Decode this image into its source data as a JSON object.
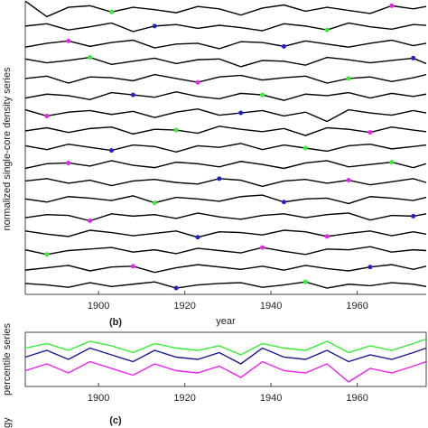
{
  "chart_data": [
    {
      "type": "line",
      "y_label": "normalized single-core density series",
      "x_label": "year",
      "x": [
        1883,
        1888,
        1893,
        1898,
        1903,
        1908,
        1913,
        1918,
        1923,
        1928,
        1933,
        1938,
        1943,
        1948,
        1953,
        1958,
        1963,
        1968,
        1973,
        1976
      ],
      "xlim": [
        1883,
        1976
      ],
      "xticks": [
        1900,
        1920,
        1940,
        1960
      ],
      "series": [
        {
          "color": "#000000",
          "values": [
            1.2,
            -0.8,
            0.4,
            0.6,
            -0.2,
            0.4,
            0.1,
            -0.3,
            0.5,
            0.2,
            -0.6,
            0.3,
            0.7,
            -0.1,
            0.4,
            0.0,
            -0.4,
            0.6,
            0.2,
            0.5
          ],
          "dots": [
            {
              "x": 1903,
              "color": "#33ee33"
            },
            {
              "x": 1968,
              "color": "#ee22ee"
            }
          ]
        },
        {
          "color": "#000000",
          "values": [
            0.2,
            0.5,
            -0.3,
            0.1,
            0.6,
            -0.5,
            0.2,
            0.4,
            -0.1,
            0.3,
            0.0,
            -0.4,
            0.5,
            0.2,
            -0.3,
            0.6,
            0.1,
            -0.2,
            0.4,
            0.3
          ],
          "dots": [
            {
              "x": 1913,
              "color": "#2222cc"
            },
            {
              "x": 1953,
              "color": "#33ee33"
            }
          ]
        },
        {
          "color": "#000000",
          "values": [
            -0.3,
            0.2,
            0.5,
            -0.2,
            0.3,
            0.6,
            -0.4,
            0.1,
            0.2,
            -0.5,
            0.4,
            0.3,
            -0.2,
            0.5,
            0.1,
            -0.3,
            0.2,
            0.6,
            -0.1,
            0.2
          ],
          "dots": [
            {
              "x": 1893,
              "color": "#ee22ee"
            },
            {
              "x": 1943,
              "color": "#2222cc"
            }
          ]
        },
        {
          "color": "#000000",
          "values": [
            0.4,
            -0.1,
            0.2,
            0.6,
            -0.3,
            0.1,
            0.5,
            -0.2,
            0.3,
            0.4,
            -0.6,
            0.2,
            0.1,
            -0.4,
            0.6,
            0.3,
            -0.1,
            0.2,
            0.5,
            -0.2
          ],
          "dots": [
            {
              "x": 1898,
              "color": "#33ee33"
            },
            {
              "x": 1973,
              "color": "#2222cc"
            }
          ]
        },
        {
          "color": "#000000",
          "values": [
            0.1,
            0.4,
            -0.5,
            0.3,
            0.2,
            -0.2,
            0.6,
            0.1,
            -0.4,
            0.3,
            0.5,
            -0.1,
            0.2,
            0.4,
            -0.5,
            0.1,
            0.3,
            -0.3,
            0.2,
            0.6
          ],
          "dots": [
            {
              "x": 1923,
              "color": "#ee22ee"
            },
            {
              "x": 1958,
              "color": "#33ee33"
            }
          ]
        },
        {
          "color": "#000000",
          "values": [
            -0.2,
            0.3,
            0.1,
            -0.4,
            0.5,
            0.2,
            -0.1,
            0.6,
            0.0,
            -0.3,
            0.4,
            0.2,
            -0.5,
            0.3,
            0.1,
            0.5,
            -0.2,
            0.4,
            0.0,
            0.3
          ],
          "dots": [
            {
              "x": 1908,
              "color": "#2222cc"
            },
            {
              "x": 1938,
              "color": "#33ee33"
            }
          ]
        },
        {
          "color": "#000000",
          "values": [
            0.5,
            -0.3,
            0.2,
            0.4,
            -0.1,
            0.3,
            -0.5,
            0.2,
            0.6,
            -0.2,
            0.1,
            0.4,
            -0.3,
            0.2,
            -1.0,
            0.5,
            0.1,
            -0.2,
            0.4,
            0.1
          ],
          "dots": [
            {
              "x": 1888,
              "color": "#ee22ee"
            },
            {
              "x": 1933,
              "color": "#2222cc"
            }
          ]
        },
        {
          "color": "#000000",
          "values": [
            0.0,
            0.4,
            -0.2,
            0.3,
            0.5,
            -0.4,
            0.2,
            0.1,
            -0.3,
            0.6,
            0.2,
            -0.1,
            0.3,
            -0.6,
            0.4,
            0.2,
            -0.2,
            0.5,
            0.1,
            -0.1
          ],
          "dots": [
            {
              "x": 1918,
              "color": "#33ee33"
            },
            {
              "x": 1963,
              "color": "#ee22ee"
            }
          ]
        },
        {
          "color": "#000000",
          "values": [
            0.3,
            -0.2,
            0.5,
            0.1,
            -0.3,
            0.4,
            0.2,
            -0.5,
            0.3,
            0.1,
            0.6,
            -0.2,
            0.4,
            0.0,
            -0.4,
            0.3,
            0.5,
            -0.1,
            0.2,
            0.4
          ],
          "dots": [
            {
              "x": 1903,
              "color": "#2222cc"
            },
            {
              "x": 1948,
              "color": "#33ee33"
            }
          ]
        },
        {
          "color": "#000000",
          "values": [
            -0.4,
            0.2,
            0.3,
            -0.1,
            0.6,
            0.0,
            -0.3,
            0.4,
            0.2,
            -0.2,
            0.5,
            0.1,
            -0.4,
            0.3,
            0.6,
            -0.2,
            0.1,
            0.4,
            -0.3,
            0.2
          ],
          "dots": [
            {
              "x": 1893,
              "color": "#ee22ee"
            },
            {
              "x": 1968,
              "color": "#33ee33"
            }
          ]
        },
        {
          "color": "#000000",
          "values": [
            0.2,
            0.5,
            -0.1,
            0.3,
            -0.4,
            0.2,
            0.4,
            0.0,
            -0.2,
            0.5,
            0.3,
            -0.5,
            0.2,
            0.4,
            -0.1,
            0.3,
            -0.3,
            0.1,
            0.5,
            0.0
          ],
          "dots": [
            {
              "x": 1928,
              "color": "#2222cc"
            },
            {
              "x": 1958,
              "color": "#ee22ee"
            }
          ]
        },
        {
          "color": "#000000",
          "values": [
            0.1,
            -0.3,
            0.4,
            0.2,
            -0.1,
            0.5,
            -0.4,
            0.3,
            0.1,
            -0.2,
            0.4,
            0.6,
            -0.3,
            0.1,
            0.2,
            -0.5,
            0.4,
            0.2,
            -0.1,
            0.3
          ],
          "dots": [
            {
              "x": 1913,
              "color": "#33ee33"
            },
            {
              "x": 1943,
              "color": "#2222cc"
            }
          ]
        },
        {
          "color": "#000000",
          "values": [
            -0.1,
            0.3,
            0.2,
            -0.5,
            0.4,
            0.1,
            0.3,
            -0.2,
            0.5,
            0.0,
            -0.3,
            0.2,
            0.4,
            -0.1,
            0.3,
            0.5,
            -0.4,
            0.2,
            0.1,
            0.4
          ],
          "dots": [
            {
              "x": 1898,
              "color": "#ee22ee"
            },
            {
              "x": 1973,
              "color": "#2222cc"
            }
          ]
        },
        {
          "color": "#000000",
          "values": [
            0.4,
            0.0,
            -0.3,
            0.5,
            0.2,
            -0.2,
            0.1,
            0.4,
            -0.4,
            0.3,
            0.2,
            -0.1,
            0.5,
            0.3,
            -0.3,
            0.1,
            0.4,
            -0.2,
            0.3,
            0.0
          ],
          "dots": [
            {
              "x": 1923,
              "color": "#2222cc"
            },
            {
              "x": 1953,
              "color": "#ee22ee"
            }
          ]
        },
        {
          "color": "#000000",
          "values": [
            0.2,
            -0.4,
            0.1,
            0.3,
            0.5,
            -0.1,
            0.2,
            -0.3,
            0.4,
            0.1,
            -0.2,
            0.5,
            0.0,
            -0.4,
            0.3,
            0.2,
            0.6,
            -0.1,
            0.2,
            0.1
          ],
          "dots": [
            {
              "x": 1888,
              "color": "#33ee33"
            },
            {
              "x": 1938,
              "color": "#ee22ee"
            }
          ]
        },
        {
          "color": "#000000",
          "values": [
            -0.2,
            0.1,
            0.4,
            -0.3,
            0.2,
            0.3,
            -0.5,
            0.1,
            0.5,
            0.2,
            -0.1,
            0.3,
            -0.2,
            0.4,
            0.0,
            -0.3,
            0.2,
            0.5,
            -0.1,
            0.3
          ],
          "dots": [
            {
              "x": 1908,
              "color": "#ee22ee"
            },
            {
              "x": 1963,
              "color": "#2222cc"
            }
          ]
        },
        {
          "color": "#000000",
          "values": [
            0.3,
            0.1,
            -0.2,
            0.4,
            -0.1,
            0.2,
            0.5,
            -0.3,
            0.1,
            0.3,
            0.4,
            -0.2,
            0.1,
            0.5,
            -0.3,
            0.2,
            0.0,
            0.4,
            0.2,
            -0.1
          ],
          "dots": [
            {
              "x": 1918,
              "color": "#2222cc"
            },
            {
              "x": 1948,
              "color": "#33ee33"
            }
          ]
        }
      ]
    },
    {
      "type": "line",
      "label": "(b)",
      "y_label": "percentile series",
      "x": [
        1883,
        1888,
        1893,
        1898,
        1903,
        1908,
        1913,
        1918,
        1923,
        1928,
        1933,
        1938,
        1943,
        1948,
        1953,
        1958,
        1963,
        1968,
        1973,
        1976
      ],
      "xlim": [
        1883,
        1976
      ],
      "xticks": [
        1900,
        1920,
        1940,
        1960
      ],
      "ylim": [
        0,
        1.2
      ],
      "series": [
        {
          "color": "#33ee33",
          "values": [
            0.85,
            0.95,
            0.8,
            1.0,
            0.9,
            0.75,
            0.95,
            0.85,
            0.8,
            0.9,
            0.7,
            0.95,
            0.85,
            0.8,
            1.0,
            0.75,
            0.9,
            0.8,
            0.95,
            1.05
          ]
        },
        {
          "color": "#1a1a99",
          "values": [
            0.65,
            0.8,
            0.6,
            0.85,
            0.7,
            0.55,
            0.8,
            0.65,
            0.6,
            0.75,
            0.5,
            0.85,
            0.65,
            0.6,
            0.8,
            0.55,
            0.7,
            0.6,
            0.75,
            0.85
          ]
        },
        {
          "color": "#ee22ee",
          "values": [
            0.35,
            0.5,
            0.3,
            0.55,
            0.4,
            0.25,
            0.5,
            0.35,
            0.3,
            0.45,
            0.2,
            0.55,
            0.35,
            0.3,
            0.5,
            0.1,
            0.4,
            0.3,
            0.45,
            0.55
          ]
        }
      ]
    },
    {
      "type": "line",
      "label": "(c)",
      "y_label": "gy"
    }
  ]
}
